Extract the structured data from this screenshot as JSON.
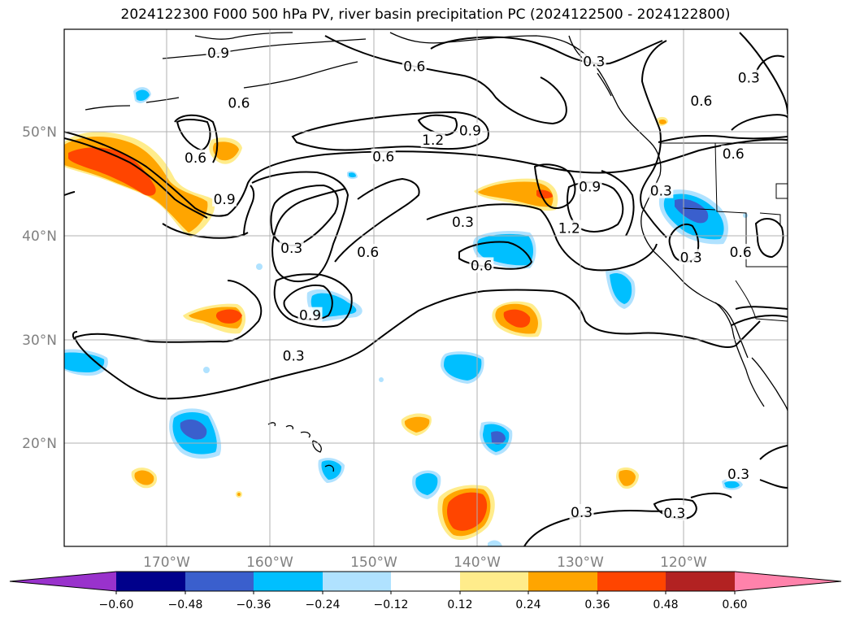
{
  "title": "2024122300 F000 500 hPa PV, river basin precipitation PC (2024122500 - 2024122800)",
  "axes": {
    "lat_labels": [
      "50°N",
      "40°N",
      "30°N",
      "20°N"
    ],
    "lon_labels": [
      "170°W",
      "160°W",
      "150°W",
      "140°W",
      "130°W",
      "120°W"
    ]
  },
  "colorbar": {
    "ticks": [
      "−0.60",
      "−0.48",
      "−0.36",
      "−0.24",
      "−0.12",
      "0.12",
      "0.24",
      "0.36",
      "0.48",
      "0.60"
    ],
    "colors": [
      "#9932cc",
      "#00008b",
      "#3a5fcd",
      "#00bfff",
      "#b0e2ff",
      "#ffffff",
      "#ffec8b",
      "#ffa500",
      "#ff4500",
      "#b22222",
      "#ff82ab"
    ]
  },
  "contour_labels": [
    {
      "text": "0.9",
      "lon": -165,
      "lat": 57.6
    },
    {
      "text": "0.6",
      "lon": -163,
      "lat": 52.8
    },
    {
      "text": "0.6",
      "lon": -146,
      "lat": 56.3
    },
    {
      "text": "0.3",
      "lon": -128.6,
      "lat": 56.8
    },
    {
      "text": "0.3",
      "lon": -113.6,
      "lat": 55.2
    },
    {
      "text": "0.6",
      "lon": -118.2,
      "lat": 53.0
    },
    {
      "text": "1.2",
      "lon": -144.2,
      "lat": 49.2
    },
    {
      "text": "0.9",
      "lon": -140.6,
      "lat": 50.1
    },
    {
      "text": "0.6",
      "lon": -167.2,
      "lat": 47.5
    },
    {
      "text": "0.6",
      "lon": -149,
      "lat": 47.6
    },
    {
      "text": "0.6",
      "lon": -115.1,
      "lat": 47.9
    },
    {
      "text": "0.9",
      "lon": -164.4,
      "lat": 43.5
    },
    {
      "text": "0.9",
      "lon": -129,
      "lat": 44.7
    },
    {
      "text": "0.3",
      "lon": -122.1,
      "lat": 44.3
    },
    {
      "text": "0.3",
      "lon": -141.3,
      "lat": 41.3
    },
    {
      "text": "1.2",
      "lon": -131,
      "lat": 40.7
    },
    {
      "text": "0.3",
      "lon": -157.9,
      "lat": 38.8
    },
    {
      "text": "0.6",
      "lon": -150.5,
      "lat": 38.4
    },
    {
      "text": "0.6",
      "lon": -139.5,
      "lat": 37.1
    },
    {
      "text": "0.3",
      "lon": -119.2,
      "lat": 37.9
    },
    {
      "text": "0.6",
      "lon": -114.4,
      "lat": 38.4
    },
    {
      "text": "0.9",
      "lon": -156.1,
      "lat": 32.3
    },
    {
      "text": "0.3",
      "lon": -157.7,
      "lat": 28.4
    },
    {
      "text": "0.3",
      "lon": -114.6,
      "lat": 17.0
    },
    {
      "text": "0.3",
      "lon": -129.8,
      "lat": 13.3
    },
    {
      "text": "0.3",
      "lon": -120.8,
      "lat": 13.2
    }
  ]
}
